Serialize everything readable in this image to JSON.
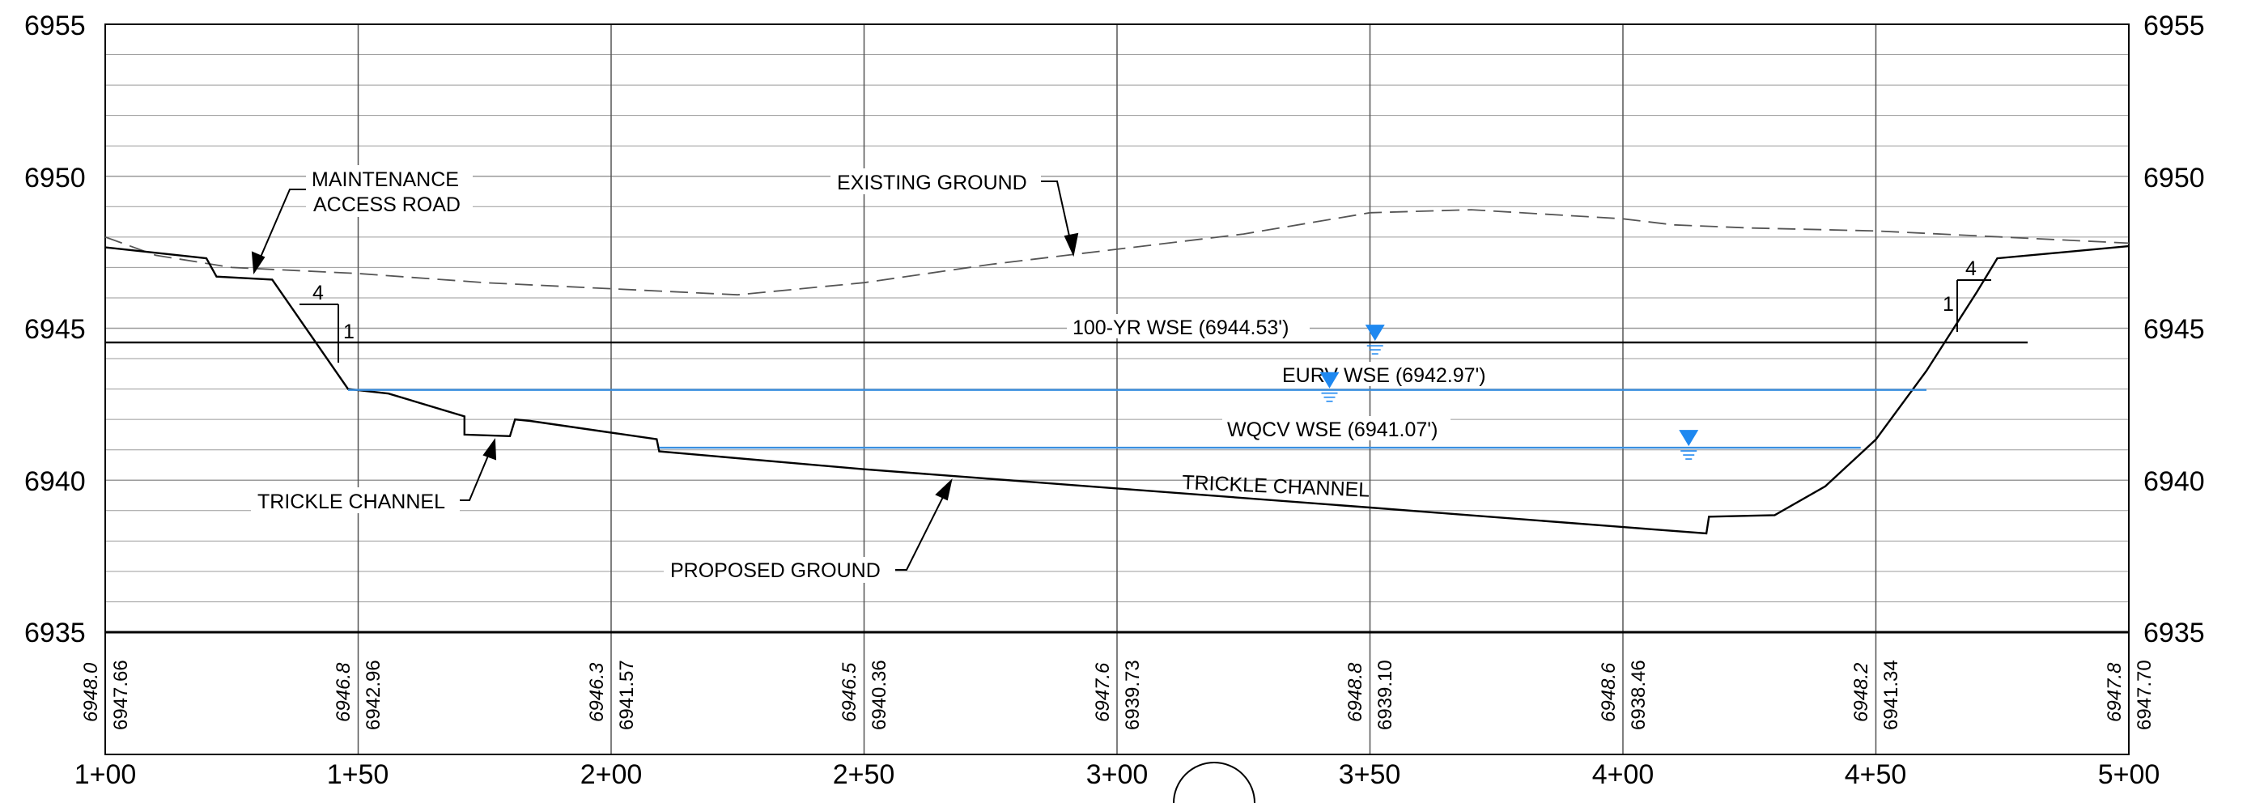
{
  "elevation_labels": [
    "6955",
    "6950",
    "6945",
    "6940",
    "6935"
  ],
  "station_labels": [
    "1+00",
    "1+50",
    "2+00",
    "2+50",
    "3+00",
    "3+50",
    "4+00",
    "4+50",
    "5+00"
  ],
  "existing_ground_values": [
    "6948.0",
    "6946.8",
    "6946.3",
    "6946.5",
    "6947.6",
    "6948.8",
    "6948.6",
    "6948.2",
    "6947.8"
  ],
  "proposed_ground_values": [
    "6947.66",
    "6942.96",
    "6941.57",
    "6940.36",
    "6939.73",
    "6939.10",
    "6938.46",
    "6941.34",
    "6947.70"
  ],
  "labels": {
    "maintenance_1": "MAINTENANCE",
    "maintenance_2": "ACCESS ROAD",
    "existing_ground": "EXISTING GROUND",
    "wse_100yr": "100-YR WSE (6944.53')",
    "eurv": "EURV WSE (6942.97')",
    "wqcv": "WQCV WSE (6941.07')",
    "trickle_left": "TRICKLE CHANNEL",
    "trickle_center": "TRICKLE CHANNEL",
    "proposed_ground": "PROPOSED GROUND",
    "slope_left_run": "4",
    "slope_left_rise": "1",
    "slope_right_run": "4",
    "slope_right_rise": "1"
  },
  "chart_data": {
    "type": "line",
    "x_unit": "station (ft)",
    "xlim": [
      100,
      500
    ],
    "ylim": [
      6935,
      6955
    ],
    "grid": true,
    "x_ticks": [
      "1+00",
      "1+50",
      "2+00",
      "2+50",
      "3+00",
      "3+50",
      "4+00",
      "4+50",
      "5+00"
    ],
    "y_ticks": [
      6935,
      6940,
      6945,
      6950,
      6955
    ],
    "series": [
      {
        "name": "EXISTING GROUND",
        "style": "dashed",
        "color": "#555555",
        "points": [
          [
            100,
            6948.0
          ],
          [
            110,
            6947.4
          ],
          [
            125,
            6947.0
          ],
          [
            150,
            6946.8
          ],
          [
            175,
            6946.5
          ],
          [
            200,
            6946.3
          ],
          [
            225,
            6946.1
          ],
          [
            250,
            6946.5
          ],
          [
            275,
            6947.1
          ],
          [
            300,
            6947.6
          ],
          [
            325,
            6948.1
          ],
          [
            350,
            6948.8
          ],
          [
            370,
            6948.9
          ],
          [
            400,
            6948.6
          ],
          [
            410,
            6948.4
          ],
          [
            425,
            6948.3
          ],
          [
            450,
            6948.2
          ],
          [
            475,
            6948.0
          ],
          [
            500,
            6947.8
          ]
        ]
      },
      {
        "name": "PROPOSED GROUND",
        "style": "solid",
        "color": "#000000",
        "points": [
          [
            100,
            6947.66
          ],
          [
            120,
            6947.3
          ],
          [
            122,
            6946.7
          ],
          [
            133,
            6946.6
          ],
          [
            148,
            6943.0
          ],
          [
            156,
            6942.85
          ],
          [
            171,
            6942.1
          ],
          [
            171,
            6941.5
          ],
          [
            180,
            6941.45
          ],
          [
            181,
            6942.0
          ],
          [
            184,
            6941.95
          ],
          [
            209,
            6941.35
          ],
          [
            209.5,
            6940.95
          ],
          [
            250,
            6940.36
          ],
          [
            300,
            6939.73
          ],
          [
            350,
            6939.1
          ],
          [
            400,
            6938.46
          ],
          [
            416.5,
            6938.25
          ],
          [
            417,
            6938.8
          ],
          [
            430,
            6938.85
          ],
          [
            440,
            6939.8
          ],
          [
            450,
            6941.34
          ],
          [
            460,
            6943.6
          ],
          [
            470,
            6946.2
          ],
          [
            474,
            6947.3
          ],
          [
            500,
            6947.7
          ]
        ]
      },
      {
        "name": "100-YR WSE (6944.53')",
        "style": "solid",
        "color": "#000000",
        "points": [
          [
            100,
            6944.53
          ],
          [
            480,
            6944.53
          ]
        ]
      },
      {
        "name": "EURV WSE (6942.97')",
        "style": "solid",
        "color": "#3a8fe0",
        "points": [
          [
            148,
            6942.97
          ],
          [
            460,
            6942.97
          ]
        ]
      },
      {
        "name": "WQCV WSE (6941.07')",
        "style": "solid",
        "color": "#3a8fe0",
        "points": [
          [
            209.5,
            6941.07
          ],
          [
            447,
            6941.07
          ]
        ]
      }
    ],
    "water_surface_symbols": [
      {
        "x": 351,
        "y": 6944.53,
        "color": "#1e88f0"
      },
      {
        "x": 342,
        "y": 6942.97,
        "color": "#1e88f0"
      },
      {
        "x": 413,
        "y": 6941.07,
        "color": "#1e88f0"
      }
    ],
    "colors": {
      "water": "#3a8fe0",
      "symbol": "#1e88f0",
      "grid": "#9a9a9a"
    }
  }
}
